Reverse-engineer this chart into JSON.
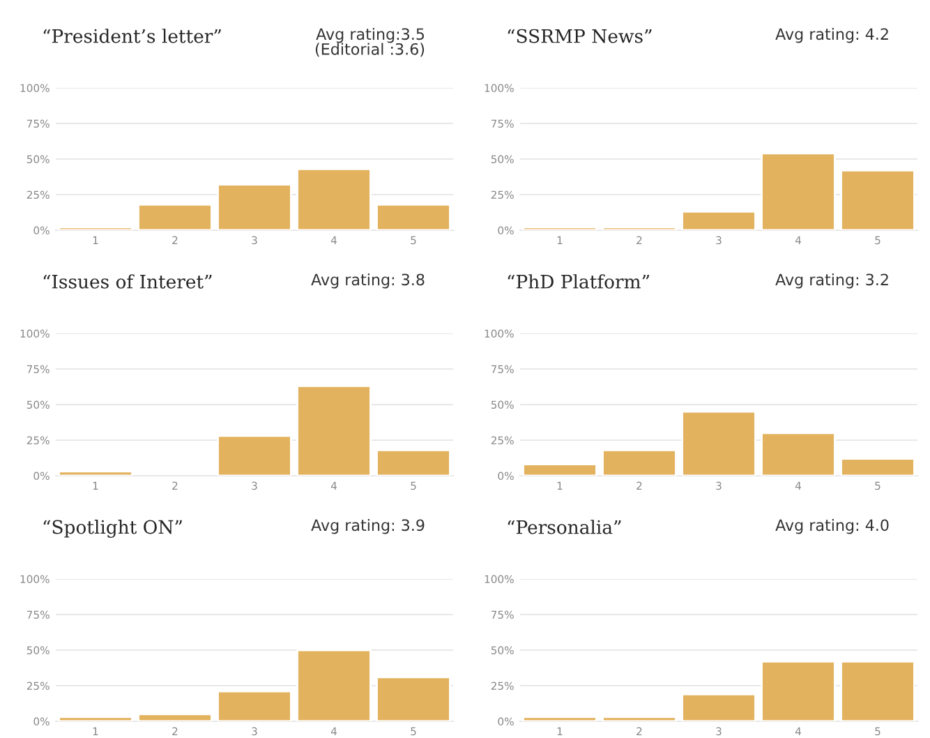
{
  "chart_data": [
    {
      "type": "bar",
      "title": "“President’s letter”",
      "annotations": [
        "Avg rating:3.5\n(Editorial :3.6)"
      ],
      "categories": [
        "1",
        "2",
        "3",
        "4",
        "5"
      ],
      "values": [
        2,
        18,
        32,
        43,
        18
      ],
      "color": "#e3b25e",
      "ylim": [
        0,
        100
      ],
      "yticks": [
        {
          "value": 0,
          "label": "0%"
        },
        {
          "value": 25,
          "label": "25%"
        },
        {
          "value": 50,
          "label": "50%"
        },
        {
          "value": 75,
          "label": "75%"
        },
        {
          "value": 100,
          "label": "100%"
        }
      ],
      "grid": "y"
    },
    {
      "type": "bar",
      "title": "“SSRMP News”",
      "annotations": [
        "Avg rating: 4.2"
      ],
      "categories": [
        "1",
        "2",
        "3",
        "4",
        "5"
      ],
      "values": [
        2,
        2,
        13,
        54,
        42
      ],
      "color": "#e3b25e",
      "ylim": [
        0,
        100
      ],
      "yticks": [
        {
          "value": 0,
          "label": "0%"
        },
        {
          "value": 25,
          "label": "25%"
        },
        {
          "value": 50,
          "label": "50%"
        },
        {
          "value": 75,
          "label": "75%"
        },
        {
          "value": 100,
          "label": "100%"
        }
      ],
      "grid": "y"
    },
    {
      "type": "bar",
      "title": "“Issues of Interet”",
      "annotations": [
        "Avg rating: 3.8"
      ],
      "categories": [
        "1",
        "2",
        "3",
        "4",
        "5"
      ],
      "values": [
        3,
        null,
        28,
        63,
        18
      ],
      "color": "#e3b25e",
      "ylim": [
        0,
        100
      ],
      "yticks": [
        {
          "value": 0,
          "label": "0%"
        },
        {
          "value": 25,
          "label": "25%"
        },
        {
          "value": 50,
          "label": "50%"
        },
        {
          "value": 75,
          "label": "75%"
        },
        {
          "value": 100,
          "label": "100%"
        }
      ],
      "grid": "y"
    },
    {
      "type": "bar",
      "title": "“PhD Platform”",
      "annotations": [
        "Avg rating: 3.2"
      ],
      "categories": [
        "1",
        "2",
        "3",
        "4",
        "5"
      ],
      "values": [
        8,
        18,
        45,
        30,
        12
      ],
      "color": "#e3b25e",
      "ylim": [
        0,
        100
      ],
      "yticks": [
        {
          "value": 0,
          "label": "0%"
        },
        {
          "value": 25,
          "label": "25%"
        },
        {
          "value": 50,
          "label": "50%"
        },
        {
          "value": 75,
          "label": "75%"
        },
        {
          "value": 100,
          "label": "100%"
        }
      ],
      "grid": "y"
    },
    {
      "type": "bar",
      "title": "“Spotlight ON”",
      "annotations": [
        "Avg rating: 3.9"
      ],
      "categories": [
        "1",
        "2",
        "3",
        "4",
        "5"
      ],
      "values": [
        3,
        5,
        21,
        50,
        31
      ],
      "color": "#e3b25e",
      "ylim": [
        0,
        100
      ],
      "yticks": [
        {
          "value": 0,
          "label": "0%"
        },
        {
          "value": 25,
          "label": "25%"
        },
        {
          "value": 50,
          "label": "50%"
        },
        {
          "value": 75,
          "label": "75%"
        },
        {
          "value": 100,
          "label": "100%"
        }
      ],
      "grid": "y"
    },
    {
      "type": "bar",
      "title": "“Personalia”",
      "annotations": [
        "Avg rating: 4.0"
      ],
      "categories": [
        "1",
        "2",
        "3",
        "4",
        "5"
      ],
      "values": [
        3,
        3,
        19,
        42,
        42
      ],
      "color": "#e3b25e",
      "ylim": [
        0,
        100
      ],
      "yticks": [
        {
          "value": 0,
          "label": "0%"
        },
        {
          "value": 25,
          "label": "25%"
        },
        {
          "value": 50,
          "label": "50%"
        },
        {
          "value": 75,
          "label": "75%"
        },
        {
          "value": 100,
          "label": "100%"
        }
      ],
      "grid": "y"
    }
  ]
}
